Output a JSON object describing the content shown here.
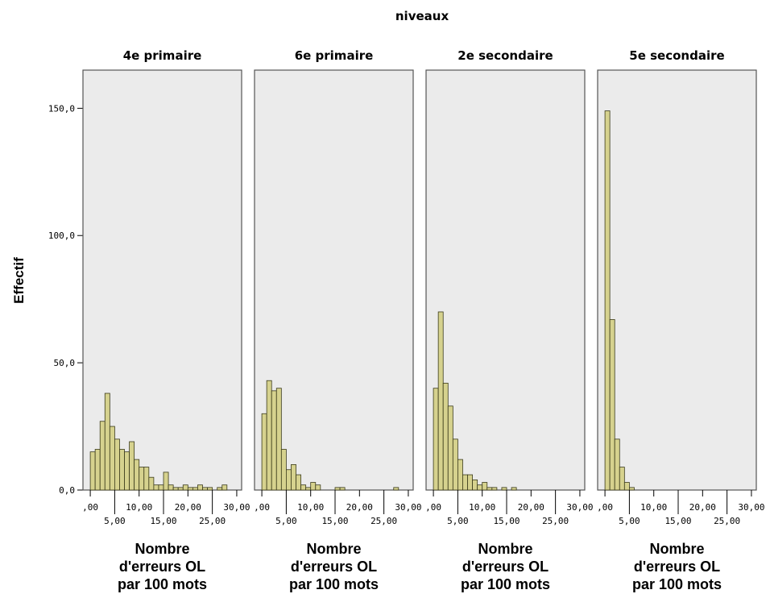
{
  "colors": {
    "panel_bg": "#ebebeb",
    "bar_fill": "#d6d28e",
    "bar_stroke": "#3a3a1a",
    "frame": "#555555"
  },
  "chart_data": {
    "type": "bar",
    "title": "niveaux",
    "ylabel": "Effectif",
    "ylim": [
      0,
      165
    ],
    "yticks": [
      "0,0",
      "50,0",
      "100,0",
      "150,0"
    ],
    "ytick_values": [
      0,
      50,
      100,
      150
    ],
    "xlim": [
      -1.5,
      31
    ],
    "bin_width": 1,
    "xticks_top": [
      {
        "value": 0,
        "label": ",00"
      },
      {
        "value": 10,
        "label": "10,00"
      },
      {
        "value": 20,
        "label": "20,00"
      },
      {
        "value": 30,
        "label": "30,00"
      }
    ],
    "xticks_bottom": [
      {
        "value": 5,
        "label": "5,00"
      },
      {
        "value": 15,
        "label": "15,00"
      },
      {
        "value": 25,
        "label": "25,00"
      }
    ],
    "panels": [
      {
        "name": "4e primaire",
        "xlabel": [
          "Nombre",
          "d'erreurs OL",
          "par 100 mots"
        ],
        "bin_start": 0,
        "counts": [
          15,
          16,
          27,
          38,
          25,
          20,
          16,
          15,
          19,
          12,
          9,
          9,
          5,
          2,
          2,
          7,
          2,
          1,
          1,
          2,
          1,
          1,
          2,
          1,
          1,
          0,
          1,
          2
        ]
      },
      {
        "name": "6e primaire",
        "xlabel": [
          "Nombre",
          "d'erreurs OL",
          "par 100 mots"
        ],
        "bin_start": 0,
        "counts": [
          30,
          43,
          39,
          40,
          16,
          8,
          10,
          6,
          2,
          1,
          3,
          2,
          0,
          0,
          0,
          1,
          1,
          0,
          0,
          0,
          0,
          0,
          0,
          0,
          0,
          0,
          0,
          1
        ]
      },
      {
        "name": "2e secondaire",
        "xlabel": [
          "Nombre",
          "d'erreurs OL",
          "par 100 mots"
        ],
        "bin_start": 0,
        "counts": [
          40,
          70,
          42,
          33,
          20,
          12,
          6,
          6,
          4,
          2,
          3,
          1,
          1,
          0,
          1,
          0,
          1
        ]
      },
      {
        "name": "5e secondaire",
        "xlabel": [
          "Nombre",
          "d'erreurs OL",
          "par 100 mots"
        ],
        "bin_start": 0,
        "counts": [
          149,
          67,
          20,
          9,
          3,
          1
        ]
      }
    ]
  }
}
